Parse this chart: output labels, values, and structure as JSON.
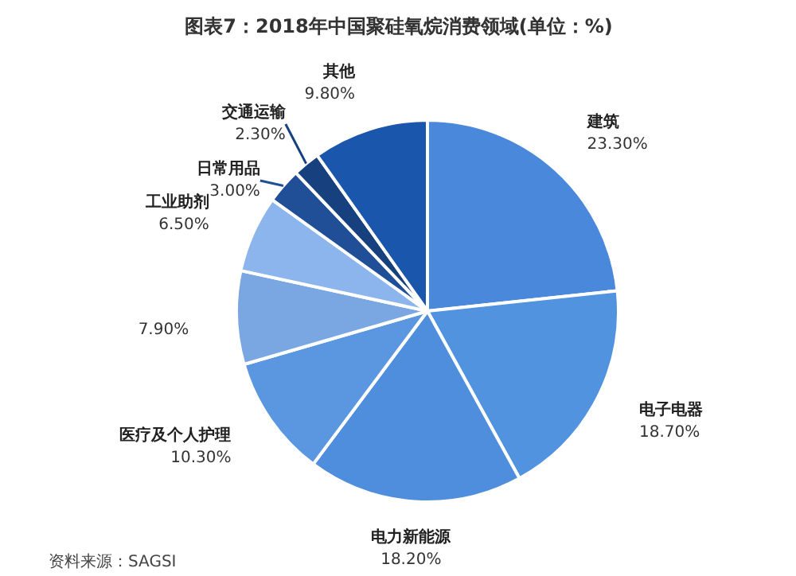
{
  "chart_data": {
    "type": "pie",
    "title": "图表7：2018年中国聚硅氧烷消费领域(单位：%)",
    "categories": [
      "建筑",
      "电子电器",
      "电力新能源",
      "医疗及个人护理",
      null,
      "工业助剂",
      "日常用品",
      "交通运输",
      "其他"
    ],
    "values": [
      23.3,
      18.7,
      18.2,
      10.3,
      7.9,
      6.5,
      3.0,
      2.3,
      9.8
    ],
    "value_labels": [
      "23.30%",
      "18.70%",
      "18.20%",
      "10.30%",
      "7.90%",
      "6.50%",
      "3.00%",
      "2.30%",
      "9.80%"
    ],
    "colors": [
      "#4a88dc",
      "#5293e0",
      "#4e8edd",
      "#5a97e0",
      "#7aa6e2",
      "#8bb5ec",
      "#204f98",
      "#17407e",
      "#1a56ab"
    ],
    "annotations": [
      "资料来源：SAGSI"
    ]
  }
}
